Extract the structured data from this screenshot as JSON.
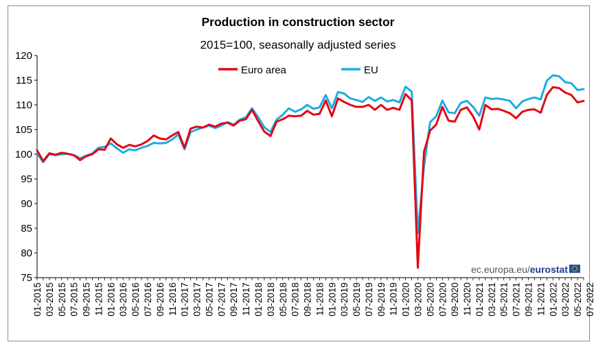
{
  "chart_data": {
    "type": "line",
    "title": "Production in construction sector",
    "subtitle": "2015=100, seasonally adjusted series",
    "xlabel": "",
    "ylabel": "",
    "ylim": [
      75,
      120
    ],
    "yticks": [
      75,
      80,
      85,
      90,
      95,
      100,
      105,
      110,
      115,
      120
    ],
    "xtick_labels": [
      "01-2015",
      "03-2015",
      "05-2015",
      "07-2015",
      "09-2015",
      "11-2015",
      "01-2016",
      "03-2016",
      "05-2016",
      "07-2016",
      "09-2016",
      "11-2016",
      "01-2017",
      "03-2017",
      "05-2017",
      "07-2017",
      "09-2017",
      "11-2017",
      "01-2018",
      "03-2018",
      "05-2018",
      "07-2018",
      "09-2018",
      "11-2018",
      "01-2019",
      "03-2019",
      "05-2019",
      "07-2019",
      "09-2019",
      "11-2019",
      "01-2020",
      "03-2020",
      "05-2020",
      "07-2020",
      "09-2020",
      "11-2020",
      "01-2021",
      "03-2021",
      "05-2021",
      "07-2021",
      "09-2021",
      "11-2021",
      "01-2022",
      "03-2022",
      "05-2022",
      "07-2022"
    ],
    "x_start": "01-2015",
    "x_frequency": "monthly",
    "grid": false,
    "legend": "top-center",
    "source_logo": {
      "prefix": "ec.europa.eu/",
      "brand": "eurostat"
    },
    "series": [
      {
        "name": "Euro area",
        "color": "#e30613",
        "values": [
          100.8,
          98.6,
          100.2,
          99.9,
          100.3,
          100.1,
          99.8,
          98.8,
          99.6,
          100.0,
          101.0,
          100.9,
          103.2,
          102.0,
          101.3,
          101.9,
          101.6,
          102.0,
          102.7,
          103.8,
          103.2,
          103.0,
          103.8,
          104.5,
          101.3,
          105.2,
          105.6,
          105.4,
          106.0,
          105.6,
          106.2,
          106.4,
          105.8,
          106.8,
          107.1,
          109.0,
          106.7,
          104.6,
          103.7,
          106.6,
          107.1,
          107.8,
          107.7,
          107.8,
          108.8,
          108.0,
          108.2,
          110.9,
          107.7,
          111.3,
          110.6,
          110.0,
          109.6,
          109.6,
          110.0,
          109.0,
          110.0,
          109.0,
          109.4,
          109.0,
          112.2,
          110.9,
          77.0,
          100.5,
          104.8,
          106.0,
          109.6,
          106.8,
          106.6,
          109.0,
          109.5,
          107.7,
          105.0,
          110.0,
          109.1,
          109.2,
          108.8,
          108.3,
          107.3,
          108.6,
          109.0,
          109.1,
          108.4,
          112.0,
          113.6,
          113.4,
          112.5,
          112.0,
          110.5,
          110.8
        ],
        "note": "values estimated from the plotted line"
      },
      {
        "name": "EU",
        "color": "#1eabe3",
        "values": [
          100.2,
          98.4,
          100.0,
          99.8,
          100.0,
          100.1,
          99.8,
          99.2,
          99.7,
          100.2,
          101.3,
          101.5,
          102.2,
          101.2,
          100.3,
          101.0,
          100.8,
          101.3,
          101.7,
          102.3,
          102.2,
          102.3,
          103.0,
          104.0,
          101.0,
          104.5,
          105.0,
          105.4,
          105.8,
          105.3,
          105.8,
          106.5,
          106.0,
          107.0,
          107.5,
          109.3,
          107.5,
          105.5,
          104.5,
          107.0,
          108.0,
          109.3,
          108.6,
          109.1,
          110.0,
          109.2,
          109.5,
          112.0,
          109.3,
          112.6,
          112.3,
          111.3,
          111.0,
          110.6,
          111.6,
          110.8,
          111.5,
          110.7,
          111.0,
          110.5,
          113.7,
          112.7,
          84.0,
          97.5,
          106.5,
          107.7,
          110.9,
          108.5,
          108.3,
          110.4,
          110.8,
          109.6,
          107.8,
          111.5,
          111.2,
          111.3,
          111.1,
          110.8,
          109.3,
          110.7,
          111.2,
          111.5,
          111.1,
          114.9,
          116.0,
          115.8,
          114.6,
          114.4,
          113.0,
          113.2
        ]
      }
    ]
  }
}
